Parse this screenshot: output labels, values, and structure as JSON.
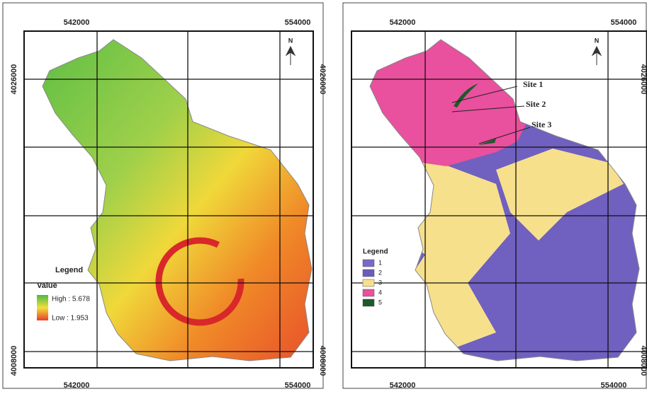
{
  "left_map": {
    "x_labels_top": [
      "542000",
      "554000"
    ],
    "x_labels_bottom": [
      "542000",
      "554000"
    ],
    "y_labels": [
      "4026000",
      "4008000"
    ],
    "north": "N",
    "legend": {
      "title": "Legend",
      "subtitle": "Value",
      "high": "High : 5.678",
      "low": "Low : 1.953"
    }
  },
  "right_map": {
    "x_labels_top": [
      "542000",
      "554000"
    ],
    "x_labels_bottom": [
      "542000",
      "554000"
    ],
    "y_labels": [
      "4026000",
      "4008000"
    ],
    "north": "N",
    "sites": [
      "Site 1",
      "Site 2",
      "Site 3"
    ],
    "legend": {
      "title": "Legend",
      "items": [
        {
          "label": "1",
          "color": "#7b68c8"
        },
        {
          "label": "2",
          "color": "#6a5cb8"
        },
        {
          "label": "3",
          "color": "#f7e08c"
        },
        {
          "label": "4",
          "color": "#e9509e"
        },
        {
          "label": "5",
          "color": "#1d5a2a"
        }
      ]
    }
  }
}
